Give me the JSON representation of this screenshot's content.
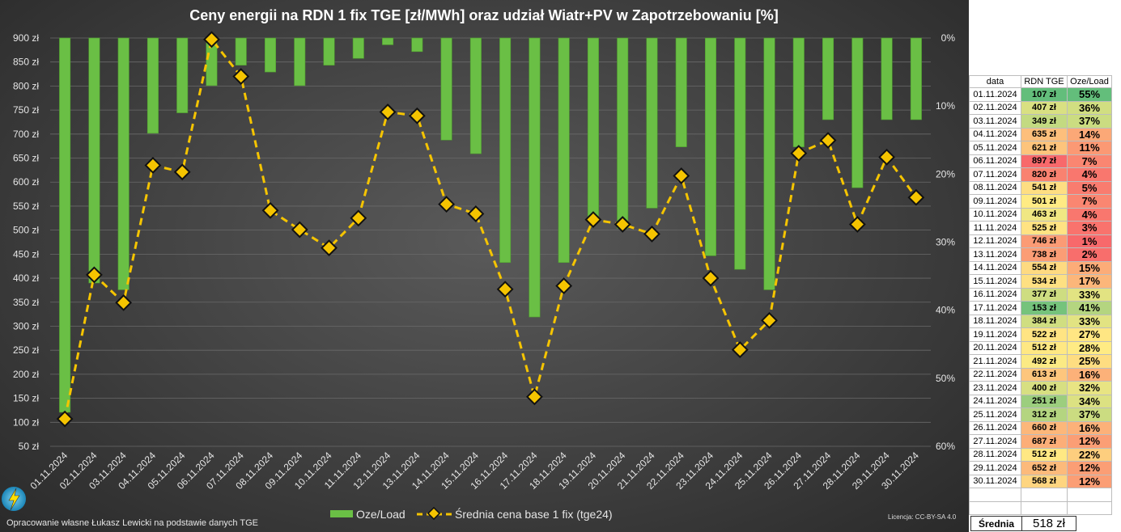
{
  "title": "Ceny energii na RDN 1 fix TGE [zł/MWh] oraz udział Wiatr+PV w Zapotrzebowaniu [%]",
  "footer_text": "Opracowanie własne Łukasz Lewicki na podstawie danych TGE",
  "license_text": "Licencja: CC-BY-SA 4.0",
  "colors": {
    "bar": "#6abf45",
    "bar_edge": "#4e9a2e",
    "line": "#f5c400",
    "marker": "#f5c400",
    "marker_edge": "#111111"
  },
  "table": {
    "headers": [
      "data",
      "RDN TGE",
      "Oze/Load"
    ],
    "rows": [
      [
        "01.11.2024",
        "107 zł",
        "55%"
      ],
      [
        "02.11.2024",
        "407 zł",
        "36%"
      ],
      [
        "03.11.2024",
        "349 zł",
        "37%"
      ],
      [
        "04.11.2024",
        "635 zł",
        "14%"
      ],
      [
        "05.11.2024",
        "621 zł",
        "11%"
      ],
      [
        "06.11.2024",
        "897 zł",
        "7%"
      ],
      [
        "07.11.2024",
        "820 zł",
        "4%"
      ],
      [
        "08.11.2024",
        "541 zł",
        "5%"
      ],
      [
        "09.11.2024",
        "501 zł",
        "7%"
      ],
      [
        "10.11.2024",
        "463 zł",
        "4%"
      ],
      [
        "11.11.2024",
        "525 zł",
        "3%"
      ],
      [
        "12.11.2024",
        "746 zł",
        "1%"
      ],
      [
        "13.11.2024",
        "738 zł",
        "2%"
      ],
      [
        "14.11.2024",
        "554 zł",
        "15%"
      ],
      [
        "15.11.2024",
        "534 zł",
        "17%"
      ],
      [
        "16.11.2024",
        "377 zł",
        "33%"
      ],
      [
        "17.11.2024",
        "153 zł",
        "41%"
      ],
      [
        "18.11.2024",
        "384 zł",
        "33%"
      ],
      [
        "19.11.2024",
        "522 zł",
        "27%"
      ],
      [
        "20.11.2024",
        "512 zł",
        "28%"
      ],
      [
        "21.11.2024",
        "492 zł",
        "25%"
      ],
      [
        "22.11.2024",
        "613 zł",
        "16%"
      ],
      [
        "23.11.2024",
        "400 zł",
        "32%"
      ],
      [
        "24.11.2024",
        "251 zł",
        "34%"
      ],
      [
        "25.11.2024",
        "312 zł",
        "37%"
      ],
      [
        "26.11.2024",
        "660 zł",
        "16%"
      ],
      [
        "27.11.2024",
        "687 zł",
        "12%"
      ],
      [
        "28.11.2024",
        "512 zł",
        "22%"
      ],
      [
        "29.11.2024",
        "652 zł",
        "12%"
      ],
      [
        "30.11.2024",
        "568 zł",
        "12%"
      ]
    ],
    "avg_label": "Średnia",
    "avg_value": "518 zł"
  },
  "chart_data": {
    "type": "bar+line",
    "title": "Ceny energii na RDN 1 fix TGE [zł/MWh] oraz udział Wiatr+PV w Zapotrzebowaniu [%]",
    "categories": [
      "01.11.2024",
      "02.11.2024",
      "03.11.2024",
      "04.11.2024",
      "05.11.2024",
      "06.11.2024",
      "07.11.2024",
      "08.11.2024",
      "09.11.2024",
      "10.11.2024",
      "11.11.2024",
      "12.11.2024",
      "13.11.2024",
      "14.11.2024",
      "15.11.2024",
      "16.11.2024",
      "17.11.2024",
      "18.11.2024",
      "19.11.2024",
      "20.11.2024",
      "21.11.2024",
      "22.11.2024",
      "23.11.2024",
      "24.11.2024",
      "25.11.2024",
      "26.11.2024",
      "27.11.2024",
      "28.11.2024",
      "29.11.2024",
      "30.11.2024"
    ],
    "left_axis": {
      "ylim": [
        50,
        900
      ],
      "ticks": [
        900,
        850,
        800,
        750,
        700,
        650,
        600,
        550,
        500,
        450,
        400,
        350,
        300,
        250,
        200,
        150,
        100,
        50
      ],
      "tick_labels": [
        "900 zł",
        "850 zł",
        "800 zł",
        "750 zł",
        "700 zł",
        "650 zł",
        "600 zł",
        "550 zł",
        "500 zł",
        "450 zł",
        "400 zł",
        "350 zł",
        "300 zł",
        "250 zł",
        "200 zł",
        "150 zł",
        "100 zł",
        "50 zł"
      ]
    },
    "right_axis": {
      "ylim": [
        0,
        60
      ],
      "inverted": true,
      "ticks": [
        0,
        10,
        20,
        30,
        40,
        50,
        60
      ],
      "tick_labels": [
        "0%",
        "10%",
        "20%",
        "30%",
        "40%",
        "50%",
        "60%"
      ]
    },
    "series": [
      {
        "name": "Oze/Load",
        "type": "bar",
        "axis": "right",
        "values": [
          55,
          36,
          37,
          14,
          11,
          7,
          4,
          5,
          7,
          4,
          3,
          1,
          2,
          15,
          17,
          33,
          41,
          33,
          27,
          28,
          25,
          16,
          32,
          34,
          37,
          16,
          12,
          22,
          12,
          12
        ]
      },
      {
        "name": "Średnia cena base 1 fix (tge24)",
        "type": "line",
        "axis": "left",
        "values": [
          107,
          407,
          349,
          635,
          621,
          897,
          820,
          541,
          501,
          463,
          525,
          746,
          738,
          554,
          534,
          377,
          153,
          384,
          522,
          512,
          492,
          613,
          400,
          251,
          312,
          660,
          687,
          512,
          652,
          568
        ]
      }
    ],
    "legend": "bottom",
    "grid": true
  }
}
